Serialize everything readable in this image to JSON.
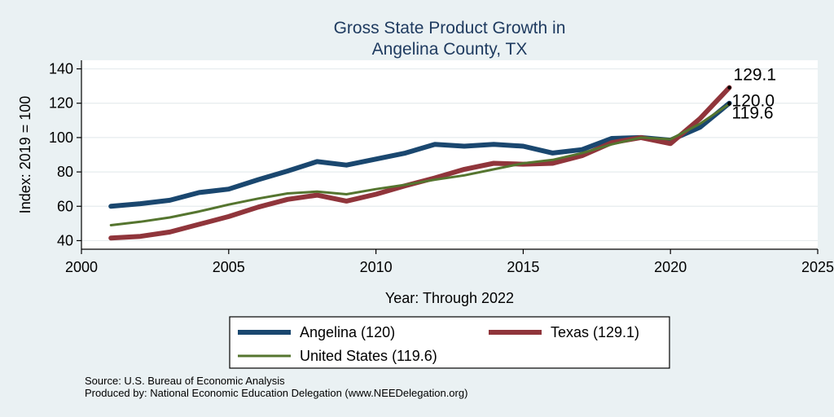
{
  "chart_data": {
    "type": "line",
    "title_lines": [
      "Gross State Product Growth in",
      "Angelina County, TX"
    ],
    "xlabel": "Year: Through 2022",
    "ylabel": "Index: 2019 = 100",
    "xlim": [
      2000,
      2025
    ],
    "ylim": [
      35,
      145
    ],
    "xticks": [
      2000,
      2005,
      2010,
      2015,
      2020,
      2025
    ],
    "yticks": [
      40,
      60,
      80,
      100,
      120,
      140
    ],
    "grid": true,
    "legend_placement": "bottom",
    "x": [
      2001,
      2002,
      2003,
      2004,
      2005,
      2006,
      2007,
      2008,
      2009,
      2010,
      2011,
      2012,
      2013,
      2014,
      2015,
      2016,
      2017,
      2018,
      2019,
      2020,
      2021,
      2022
    ],
    "series": [
      {
        "name": "Angelina  (120)",
        "color": "#1a476f",
        "width": 6,
        "values": [
          60,
          61.5,
          63.5,
          68,
          70,
          75.5,
          80.5,
          86,
          84,
          87.5,
          91,
          96,
          95,
          96,
          95,
          91,
          93,
          99.5,
          100,
          98.5,
          106,
          120.0
        ],
        "end_label": "120.0"
      },
      {
        "name": "Texas (129.1)",
        "color": "#90353b",
        "width": 6,
        "values": [
          41.5,
          42.5,
          45,
          49.5,
          54,
          59.5,
          64,
          66.5,
          63,
          67,
          72,
          76.5,
          81.5,
          85,
          84.5,
          85,
          89.5,
          97,
          100,
          96.5,
          111,
          129.1
        ],
        "end_label": "129.1"
      },
      {
        "name": "United States (119.6)",
        "color": "#55752f",
        "width": 3,
        "values": [
          49,
          51,
          53.5,
          57,
          61,
          64.5,
          67.5,
          68.5,
          67,
          70,
          72.5,
          75.5,
          78,
          81.5,
          85,
          87,
          91,
          96,
          100,
          99,
          108,
          119.6
        ],
        "end_label": "119.6"
      }
    ]
  },
  "footer": {
    "source": "Source: U.S. Bureau of Economic Analysis",
    "produced": "Produced by: National Economic Education Delegation (www.NEEDelegation.org)"
  }
}
